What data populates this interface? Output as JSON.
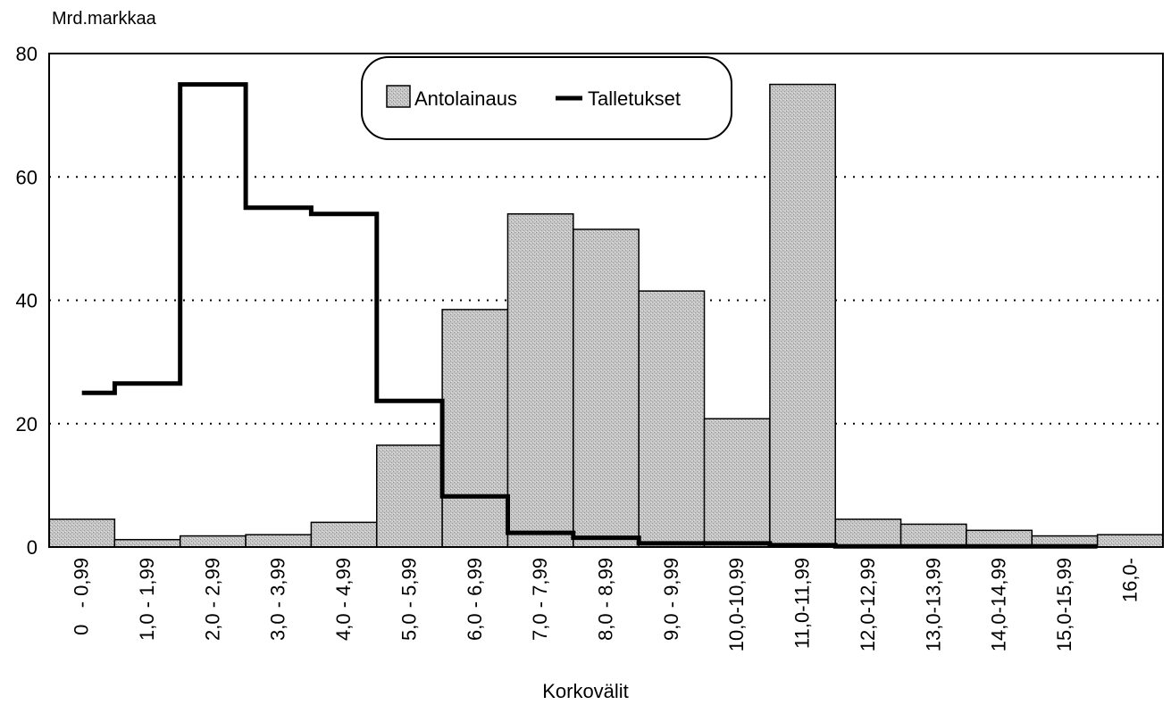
{
  "chart_data": {
    "type": "bar",
    "ylabel": "Mrd.markkaa",
    "xlabel": "Korkovälit",
    "ylim": [
      0,
      80
    ],
    "yticks": [
      0,
      20,
      40,
      60,
      80
    ],
    "grid": "horizontal dotted",
    "legend_position": "top-center",
    "categories": [
      "0   - 0,99",
      "1,0 - 1,99",
      "2,0 - 2,99",
      "3,0 - 3,99",
      "4,0 - 4,99",
      "5,0 - 5,99",
      "6,0 - 6,99",
      "7,0 - 7,99",
      "8,0 - 8,99",
      "9,0 - 9,99",
      "10,0-10,99",
      "11,0-11,99",
      "12,0-12,99",
      "13,0-13,99",
      "14,0-14,99",
      "15,0-15,99",
      "16,0-"
    ],
    "series": [
      {
        "name": "Antolainaus",
        "type": "bar",
        "color": "#b8b8b8",
        "values": [
          4.5,
          1.2,
          1.8,
          2.0,
          4.0,
          16.5,
          38.5,
          54.0,
          51.5,
          41.5,
          20.8,
          75.0,
          4.5,
          3.7,
          2.7,
          1.8,
          2.0
        ]
      },
      {
        "name": "Talletukset",
        "type": "step-line",
        "color": "#000000",
        "values": [
          25.0,
          26.5,
          75.0,
          55.0,
          54.0,
          23.7,
          8.2,
          2.3,
          1.5,
          0.6,
          0.6,
          0.3,
          0.1,
          0.1,
          0.1,
          0.1,
          null
        ]
      }
    ]
  }
}
